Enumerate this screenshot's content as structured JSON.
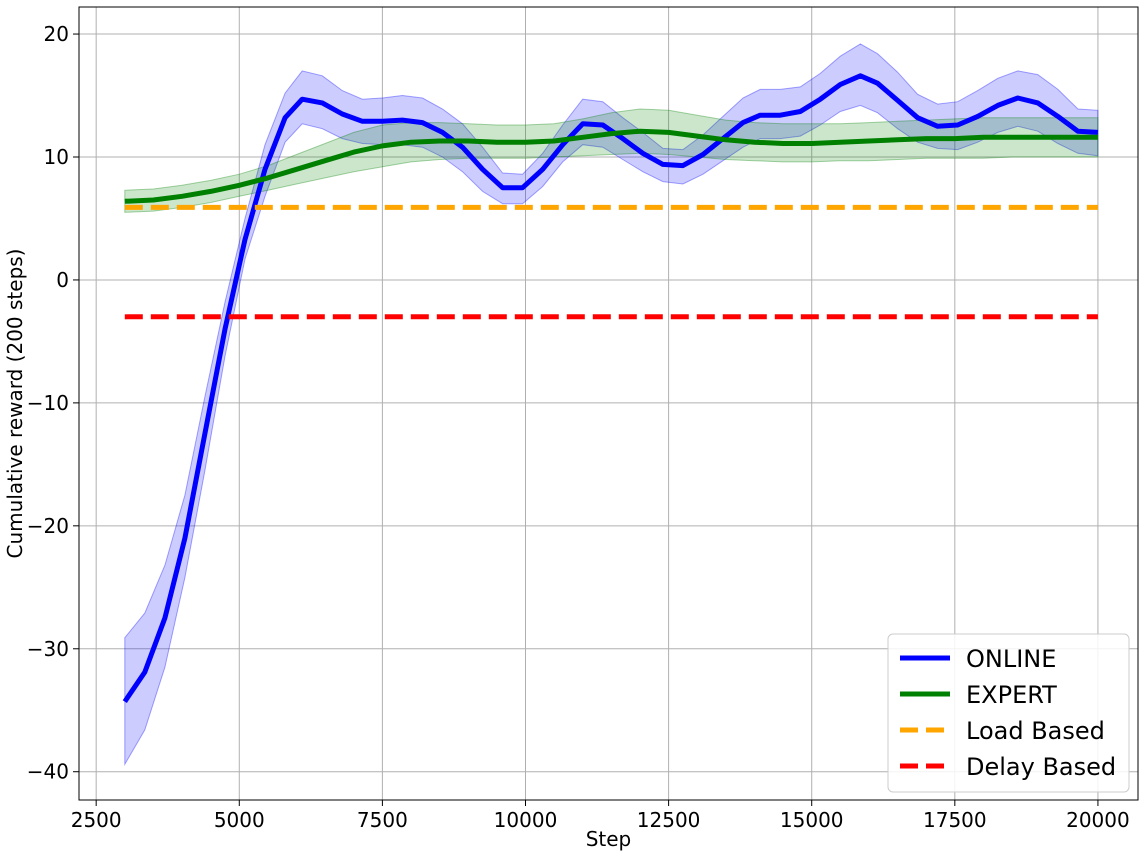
{
  "chart_data": {
    "type": "line",
    "xlabel": "Step",
    "ylabel": "Cumulative reward (200 steps)",
    "xlim": [
      2200,
      20700
    ],
    "ylim": [
      -42.3,
      22.2
    ],
    "xticks": [
      2500,
      5000,
      7500,
      10000,
      12500,
      15000,
      17500,
      20000
    ],
    "yticks": [
      -40,
      -30,
      -20,
      -10,
      0,
      10,
      20
    ],
    "grid": true,
    "legend_position": "bottom-right",
    "series": [
      {
        "name": "ONLINE",
        "color": "#0000ff",
        "style": "solid",
        "band_color": "#0000ff",
        "band_opacity": 0.2,
        "x": [
          3000,
          3350,
          3700,
          4050,
          4400,
          4750,
          5100,
          5450,
          5800,
          6100,
          6450,
          6800,
          7150,
          7500,
          7850,
          8200,
          8550,
          8900,
          9250,
          9600,
          9950,
          10300,
          10650,
          11000,
          11350,
          11700,
          12050,
          12400,
          12750,
          13100,
          13450,
          13800,
          14100,
          14450,
          14800,
          15150,
          15500,
          15850,
          16150,
          16500,
          16850,
          17200,
          17550,
          17900,
          18250,
          18600,
          18950,
          19300,
          19650,
          20000
        ],
        "y": [
          -34.3,
          -31.9,
          -27.5,
          -21.0,
          -12.5,
          -4.0,
          3.3,
          9.0,
          13.2,
          14.7,
          14.4,
          13.5,
          12.9,
          12.9,
          13.0,
          12.8,
          12.0,
          10.8,
          9.0,
          7.5,
          7.5,
          9.0,
          11.0,
          12.7,
          12.6,
          11.5,
          10.3,
          9.4,
          9.3,
          10.2,
          11.5,
          12.8,
          13.4,
          13.4,
          13.7,
          14.7,
          15.9,
          16.6,
          16.0,
          14.6,
          13.2,
          12.5,
          12.6,
          13.3,
          14.2,
          14.8,
          14.4,
          13.3,
          12.1,
          12.0
        ],
        "lower": [
          -39.4,
          -36.6,
          -31.5,
          -24.2,
          -15.5,
          -6.2,
          1.7,
          6.8,
          11.2,
          12.7,
          12.3,
          11.5,
          11.1,
          11.0,
          11.0,
          10.8,
          10.0,
          8.8,
          7.2,
          6.2,
          6.2,
          7.6,
          9.6,
          11.0,
          10.8,
          9.8,
          8.8,
          8.0,
          7.8,
          8.6,
          9.7,
          10.8,
          11.5,
          11.5,
          11.7,
          12.6,
          13.7,
          14.2,
          13.6,
          12.3,
          11.2,
          10.7,
          10.6,
          11.2,
          12.0,
          12.5,
          12.1,
          11.1,
          10.3,
          10.1
        ],
        "upper": [
          -29.1,
          -27.1,
          -23.2,
          -17.5,
          -9.5,
          -1.8,
          5.0,
          11.0,
          15.2,
          17.0,
          16.6,
          15.4,
          14.7,
          14.8,
          15.0,
          14.8,
          13.9,
          12.7,
          10.8,
          8.7,
          8.6,
          10.3,
          12.6,
          14.7,
          14.5,
          13.2,
          12.0,
          10.7,
          10.6,
          11.8,
          13.3,
          14.8,
          15.5,
          15.5,
          15.7,
          16.8,
          18.2,
          19.2,
          18.4,
          16.9,
          15.1,
          14.3,
          14.5,
          15.4,
          16.4,
          17.0,
          16.7,
          15.5,
          13.9,
          13.8
        ]
      },
      {
        "name": "EXPERT",
        "color": "#008000",
        "style": "solid",
        "band_color": "#008000",
        "band_opacity": 0.2,
        "x": [
          3000,
          3500,
          4000,
          4500,
          5000,
          5500,
          6000,
          6500,
          7000,
          7500,
          8000,
          8500,
          9000,
          9500,
          10000,
          10500,
          11000,
          11500,
          12000,
          12500,
          13000,
          13500,
          14000,
          14500,
          15000,
          15500,
          16000,
          16500,
          17000,
          17500,
          18000,
          18500,
          19000,
          19500,
          20000
        ],
        "y": [
          6.4,
          6.5,
          6.8,
          7.2,
          7.7,
          8.3,
          9.0,
          9.7,
          10.4,
          10.9,
          11.2,
          11.3,
          11.3,
          11.2,
          11.2,
          11.3,
          11.6,
          11.9,
          12.1,
          12.0,
          11.7,
          11.4,
          11.2,
          11.1,
          11.1,
          11.2,
          11.3,
          11.4,
          11.5,
          11.5,
          11.6,
          11.6,
          11.6,
          11.6,
          11.6
        ],
        "lower": [
          5.5,
          5.6,
          5.9,
          6.3,
          6.8,
          7.3,
          7.8,
          8.3,
          8.8,
          9.2,
          9.6,
          9.8,
          9.9,
          9.9,
          9.9,
          10.0,
          10.1,
          10.2,
          10.3,
          10.2,
          10.0,
          9.8,
          9.7,
          9.6,
          9.6,
          9.7,
          9.7,
          9.8,
          9.9,
          9.9,
          9.9,
          10.0,
          10.0,
          10.0,
          10.0
        ],
        "upper": [
          7.3,
          7.4,
          7.7,
          8.1,
          8.6,
          9.3,
          10.2,
          11.1,
          12.0,
          12.6,
          12.8,
          12.8,
          12.7,
          12.6,
          12.6,
          12.7,
          13.1,
          13.6,
          13.9,
          13.8,
          13.4,
          13.0,
          12.8,
          12.7,
          12.7,
          12.7,
          12.8,
          12.9,
          13.0,
          13.1,
          13.2,
          13.2,
          13.2,
          13.2,
          13.2
        ]
      },
      {
        "name": "Load Based",
        "color": "#ffa500",
        "style": "dashed",
        "x": [
          3000,
          20000
        ],
        "y": [
          5.9,
          5.9
        ]
      },
      {
        "name": "Delay Based",
        "color": "#ff0000",
        "style": "dashed",
        "x": [
          3000,
          20000
        ],
        "y": [
          -3.0,
          -3.0
        ]
      }
    ]
  }
}
